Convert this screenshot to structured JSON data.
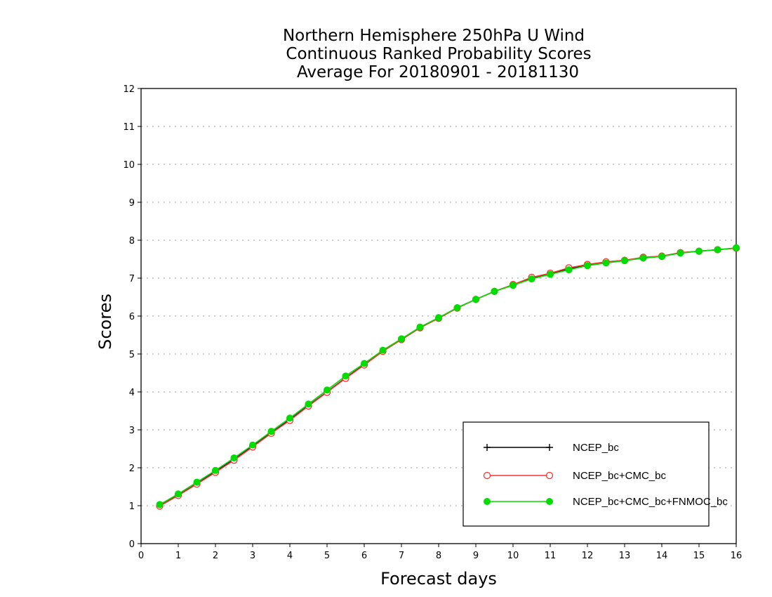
{
  "chart_data": {
    "type": "line",
    "title": [
      "Northern Hemisphere 250hPa U Wind",
      "Continuous Ranked Probability Scores",
      "Average For 20180901 - 20181130"
    ],
    "xlabel": "Forecast days",
    "ylabel": "Scores",
    "xlim": [
      0,
      16
    ],
    "ylim": [
      0,
      12
    ],
    "xticks": [
      0,
      1,
      2,
      3,
      4,
      5,
      6,
      7,
      8,
      9,
      10,
      11,
      12,
      13,
      14,
      15,
      16
    ],
    "yticks": [
      0,
      1,
      2,
      3,
      4,
      5,
      6,
      7,
      8,
      9,
      10,
      11,
      12
    ],
    "grid": true,
    "legend_position": "bottom-right",
    "x": [
      0.5,
      1,
      1.5,
      2,
      2.5,
      3,
      3.5,
      4,
      4.5,
      5,
      5.5,
      6,
      6.5,
      7,
      7.5,
      8,
      8.5,
      9,
      9.5,
      10,
      10.5,
      11,
      11.5,
      12,
      12.5,
      13,
      13.5,
      14,
      14.5,
      15,
      15.5,
      16
    ],
    "series": [
      {
        "name": "NCEP_bc",
        "color": "#000000",
        "marker": "plus",
        "values": [
          1.0,
          1.28,
          1.58,
          1.9,
          2.22,
          2.57,
          2.92,
          3.27,
          3.64,
          4.0,
          4.37,
          4.72,
          5.08,
          5.38,
          5.69,
          5.95,
          6.22,
          6.44,
          6.65,
          6.82,
          7.0,
          7.12,
          7.25,
          7.35,
          7.42,
          7.47,
          7.53,
          7.58,
          7.67,
          7.71,
          7.75,
          7.79
        ]
      },
      {
        "name": "NCEP_bc+CMC_bc",
        "color": "#ff3030",
        "marker": "open-circle",
        "values": [
          0.99,
          1.27,
          1.57,
          1.88,
          2.2,
          2.55,
          2.91,
          3.25,
          3.63,
          3.99,
          4.36,
          4.71,
          5.07,
          5.38,
          5.69,
          5.94,
          6.21,
          6.44,
          6.65,
          6.83,
          7.02,
          7.13,
          7.27,
          7.36,
          7.43,
          7.47,
          7.55,
          7.58,
          7.67,
          7.71,
          7.75,
          7.79
        ]
      },
      {
        "name": "NCEP_bc+CMC_bc+FNMOC_bc",
        "color": "#00dd00",
        "marker": "filled-circle",
        "values": [
          1.03,
          1.31,
          1.62,
          1.93,
          2.26,
          2.6,
          2.96,
          3.31,
          3.68,
          4.05,
          4.42,
          4.75,
          5.1,
          5.4,
          5.71,
          5.96,
          6.22,
          6.44,
          6.65,
          6.81,
          6.98,
          7.1,
          7.22,
          7.33,
          7.4,
          7.46,
          7.53,
          7.57,
          7.66,
          7.71,
          7.75,
          7.8
        ]
      }
    ]
  }
}
